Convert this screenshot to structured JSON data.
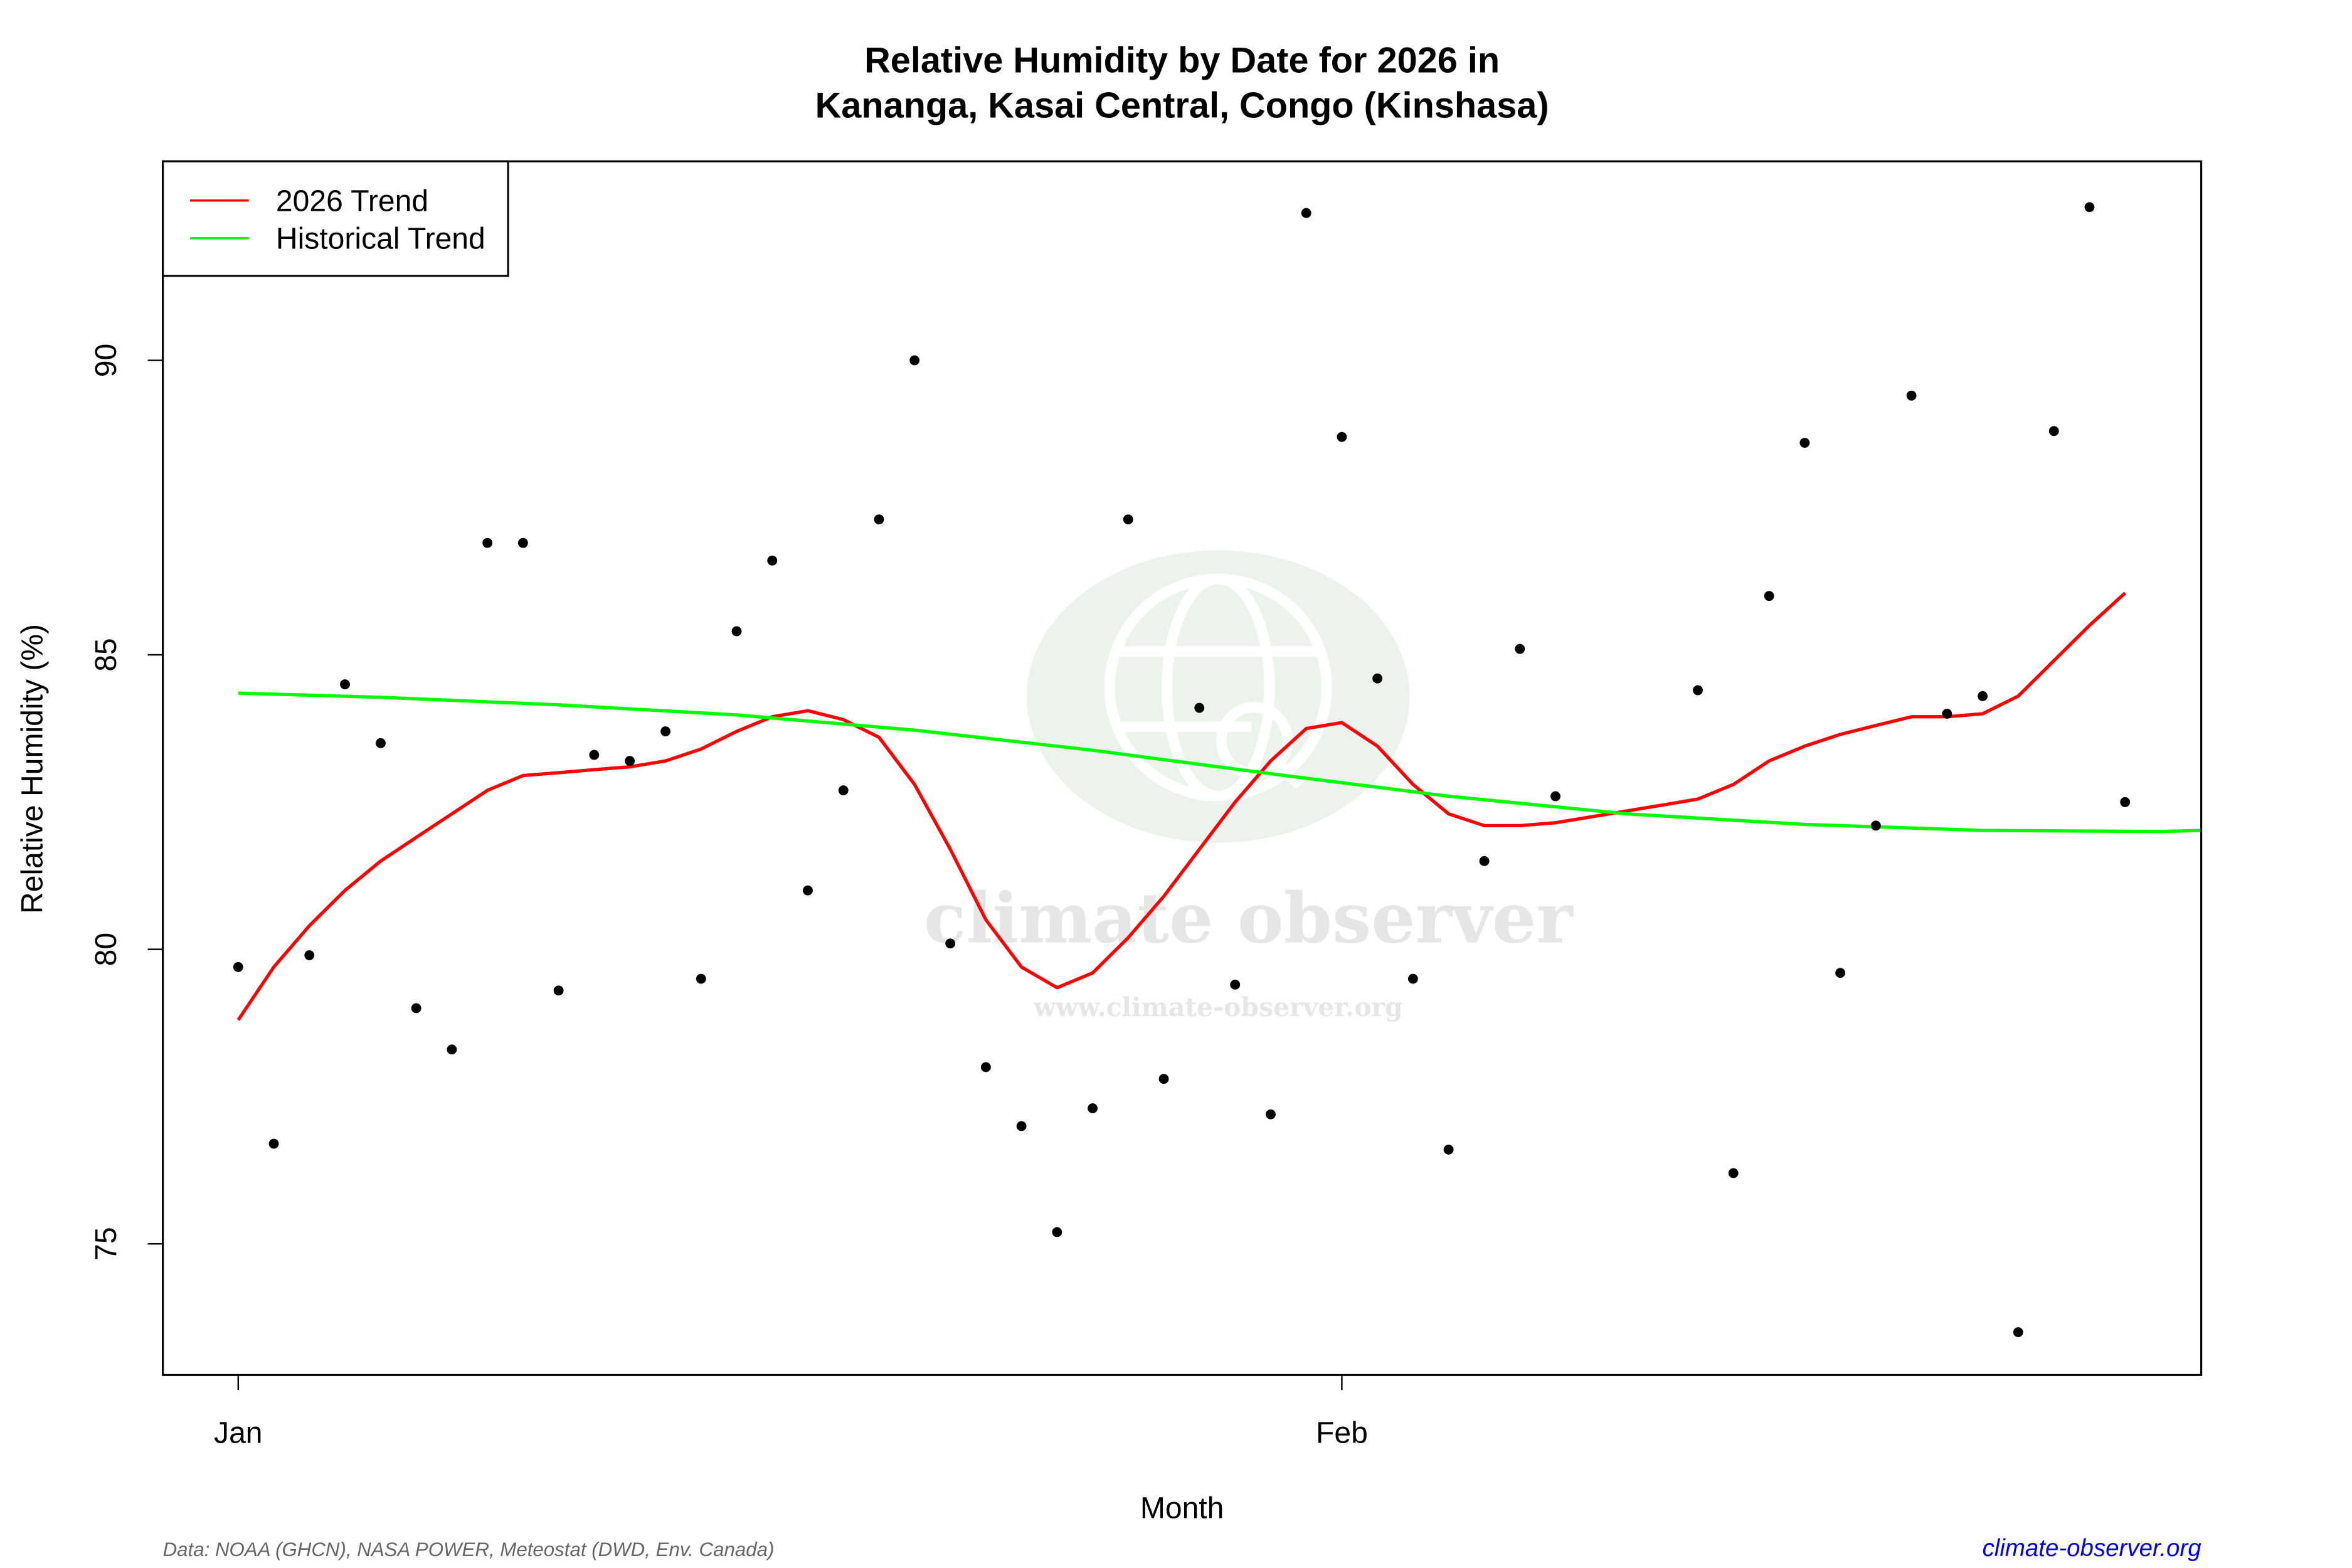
{
  "chart_data": {
    "type": "scatter",
    "title": "Relative Humidity by Date for 2026 in",
    "subtitle": "Kananga, Kasai Central, Congo (Kinshasa)",
    "xlabel": "Month",
    "ylabel": "Relative Humidity (%)",
    "x_ticks": [
      {
        "label": "Jan",
        "day": 1
      },
      {
        "label": "Feb",
        "day": 32
      }
    ],
    "y_ticks": [
      75,
      80,
      85,
      90
    ],
    "xlim": [
      -3.3,
      58.0
    ],
    "ylim": [
      72.8,
      93.4
    ],
    "grid": false,
    "legend_position": "top-left",
    "legend": [
      {
        "label": "2026 Trend",
        "color": "#ff0000"
      },
      {
        "label": "Historical Trend",
        "color": "#00ff00"
      }
    ],
    "series": [
      {
        "name": "Daily observations",
        "type": "scatter",
        "color": "#000000",
        "x": [
          1,
          2,
          3,
          4,
          5,
          6,
          7,
          8,
          9,
          10,
          11,
          12,
          13,
          14,
          15,
          16,
          17,
          18,
          19,
          20,
          21,
          22,
          23,
          24,
          25,
          26,
          27,
          28,
          29,
          30,
          31,
          32,
          33,
          34,
          35,
          36,
          37,
          38,
          42,
          43,
          44,
          45,
          46,
          47,
          48,
          49,
          50,
          51,
          52,
          53,
          54
        ],
        "values": [
          79.7,
          76.7,
          79.9,
          84.5,
          83.5,
          79.0,
          78.3,
          86.9,
          86.9,
          79.3,
          83.3,
          83.2,
          83.7,
          79.5,
          85.4,
          86.6,
          81.0,
          82.7,
          87.3,
          90.0,
          80.1,
          78.0,
          77.0,
          75.2,
          77.3,
          87.3,
          77.8,
          84.1,
          79.4,
          77.2,
          92.5,
          88.7,
          84.6,
          79.5,
          76.6,
          81.5,
          85.1,
          82.6,
          84.4,
          76.2,
          86.0,
          88.6,
          79.6,
          82.1,
          89.4,
          84.0,
          84.3,
          73.5,
          88.8,
          92.6,
          82.5
        ]
      },
      {
        "name": "2026 Trend",
        "type": "line",
        "color": "#ff0000",
        "x": [
          1,
          2,
          3,
          4,
          5,
          6,
          7,
          8,
          9,
          10,
          11,
          12,
          13,
          14,
          15,
          16,
          17,
          18,
          19,
          20,
          21,
          22,
          23,
          24,
          25,
          26,
          27,
          28,
          29,
          30,
          31,
          32,
          33,
          34,
          35,
          36,
          37,
          38,
          39,
          40,
          41,
          42,
          43,
          44,
          45,
          46,
          47,
          48,
          49,
          50,
          51,
          52,
          53,
          54
        ],
        "values": [
          78.8,
          79.7,
          80.4,
          81.0,
          81.5,
          81.9,
          82.3,
          82.7,
          82.95,
          83.0,
          83.05,
          83.1,
          83.2,
          83.4,
          83.7,
          83.95,
          84.05,
          83.9,
          83.6,
          82.8,
          81.7,
          80.5,
          79.7,
          79.35,
          79.6,
          80.2,
          80.9,
          81.7,
          82.5,
          83.2,
          83.75,
          83.85,
          83.45,
          82.8,
          82.3,
          82.1,
          82.1,
          82.15,
          82.25,
          82.35,
          82.45,
          82.55,
          82.8,
          83.2,
          83.45,
          83.65,
          83.8,
          83.95,
          83.95,
          84.0,
          84.3,
          84.9,
          85.5,
          86.05
        ]
      },
      {
        "name": "Historical Trend",
        "type": "line",
        "color": "#00ff00",
        "x": [
          1,
          5,
          10,
          15,
          20,
          25,
          30,
          35,
          40,
          45,
          50,
          55,
          57.5
        ],
        "values": [
          84.35,
          84.28,
          84.15,
          83.98,
          83.72,
          83.38,
          82.98,
          82.6,
          82.3,
          82.12,
          82.02,
          82.0,
          82.02
        ]
      }
    ],
    "annotations": {
      "watermark_main": "climate observer",
      "watermark_url": "www.climate-observer.org"
    }
  },
  "footer": {
    "source": "Data: NOAA (GHCN), NASA POWER, Meteostat (DWD, Env. Canada)",
    "site": "climate-observer.org"
  }
}
